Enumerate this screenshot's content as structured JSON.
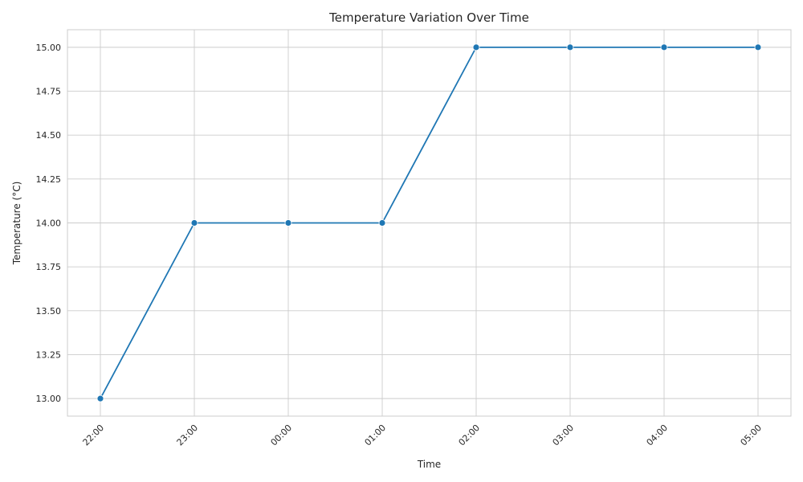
{
  "chart_data": {
    "type": "line",
    "title": "Temperature Variation Over Time",
    "xlabel": "Time",
    "ylabel": "Temperature (°C)",
    "categories": [
      "22:00",
      "23:00",
      "00:00",
      "01:00",
      "02:00",
      "03:00",
      "04:00",
      "05:00"
    ],
    "series": [
      {
        "values": [
          13,
          14,
          14,
          14,
          15,
          15,
          15,
          15
        ],
        "color": "#1f77b4"
      }
    ],
    "ylim": [
      12.9,
      15.1
    ],
    "yticks": [
      13.0,
      13.25,
      13.5,
      13.75,
      14.0,
      14.25,
      14.5,
      14.75,
      15.0
    ],
    "ytick_labels": [
      "13.00",
      "13.25",
      "13.50",
      "13.75",
      "14.00",
      "14.25",
      "14.50",
      "14.75",
      "15.00"
    ],
    "grid": true,
    "marker": "circle",
    "xtick_rotation": 45
  }
}
